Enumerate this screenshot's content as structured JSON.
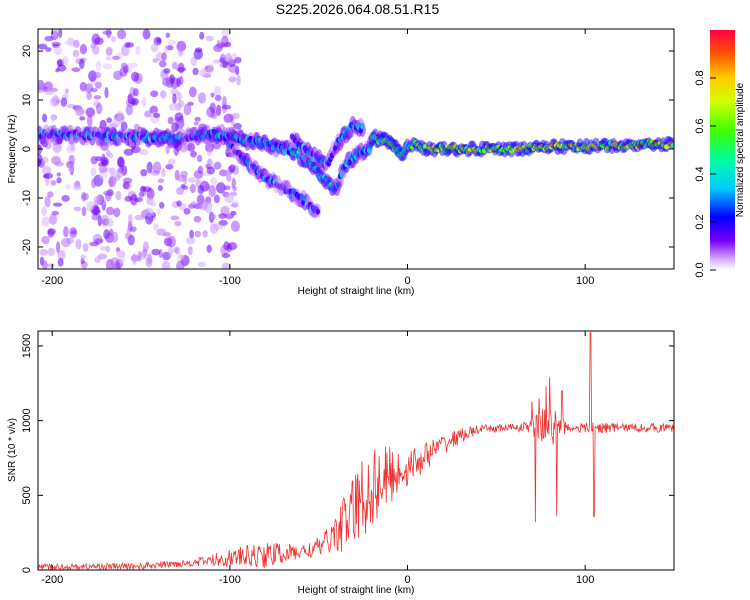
{
  "title": "S225.2026.064.08.51.R15",
  "chart_data": [
    {
      "type": "heatmap",
      "xlabel": "Height of straight line (km)",
      "ylabel": "Frequency (Hz)",
      "xlim": [
        -208,
        150
      ],
      "ylim": [
        -24.5,
        24.5
      ],
      "xticks": [
        -200,
        -100,
        0,
        100
      ],
      "yticks": [
        -20,
        -10,
        0,
        10,
        20
      ],
      "colorbar": {
        "label": "Normalized spectral amplitude",
        "range": [
          0,
          1
        ],
        "ticks": [
          0.0,
          0.2,
          0.4,
          0.6,
          0.8
        ]
      },
      "tracks": [
        {
          "name": "main-trace",
          "points": [
            [
              -208,
              3
            ],
            [
              -190,
              3
            ],
            [
              -170,
              2.5
            ],
            [
              -150,
              2.5
            ],
            [
              -130,
              2
            ],
            [
              -115,
              3
            ],
            [
              -105,
              3
            ],
            [
              -95,
              2
            ],
            [
              -80,
              1
            ],
            [
              -70,
              0
            ],
            [
              -62,
              -1
            ],
            [
              -52,
              -4
            ],
            [
              -45,
              -7
            ],
            [
              -40,
              -8
            ],
            [
              -35,
              -3
            ],
            [
              -28,
              -1
            ],
            [
              -22,
              0
            ],
            [
              -20,
              2
            ],
            [
              -14,
              2
            ],
            [
              -8,
              0.5
            ],
            [
              -4,
              -1
            ],
            [
              0,
              0.5
            ],
            [
              5,
              1
            ],
            [
              10,
              0
            ],
            [
              20,
              0
            ],
            [
              40,
              0
            ],
            [
              60,
              0
            ],
            [
              80,
              0.5
            ],
            [
              100,
              0.5
            ],
            [
              120,
              0.8
            ],
            [
              140,
              1
            ],
            [
              150,
              1
            ]
          ]
        },
        {
          "name": "lower-branch",
          "points": [
            [
              -100,
              1
            ],
            [
              -90,
              -3
            ],
            [
              -80,
              -6
            ],
            [
              -70,
              -8
            ],
            [
              -60,
              -10
            ],
            [
              -50,
              -13
            ]
          ]
        },
        {
          "name": "upper-branch",
          "points": [
            [
              -65,
              2
            ],
            [
              -55,
              -1
            ],
            [
              -45,
              -3
            ],
            [
              -40,
              1
            ],
            [
              -35,
              3
            ],
            [
              -30,
              5
            ],
            [
              -25,
              4
            ]
          ]
        }
      ]
    },
    {
      "type": "line",
      "xlabel": "Height of straight line (km)",
      "ylabel": "SNR (10 * v/v)",
      "xlim": [
        -208,
        150
      ],
      "ylim": [
        0,
        1600
      ],
      "xticks": [
        -200,
        -100,
        0,
        100
      ],
      "yticks": [
        0,
        500,
        1000,
        1500
      ],
      "line_color": "#ee3333",
      "envelope": [
        [
          -208,
          20
        ],
        [
          -150,
          25
        ],
        [
          -120,
          50
        ],
        [
          -100,
          80
        ],
        [
          -80,
          100
        ],
        [
          -60,
          120
        ],
        [
          -50,
          150
        ],
        [
          -40,
          250
        ],
        [
          -30,
          400
        ],
        [
          -20,
          560
        ],
        [
          -10,
          630
        ],
        [
          0,
          680
        ],
        [
          10,
          760
        ],
        [
          20,
          840
        ],
        [
          30,
          900
        ],
        [
          40,
          940
        ],
        [
          60,
          955
        ],
        [
          80,
          960
        ],
        [
          100,
          950
        ],
        [
          120,
          955
        ],
        [
          150,
          950
        ]
      ],
      "noise": [
        [
          -208,
          20
        ],
        [
          -120,
          25
        ],
        [
          -100,
          60
        ],
        [
          -80,
          90
        ],
        [
          -60,
          50
        ],
        [
          -45,
          80
        ],
        [
          -35,
          200
        ],
        [
          -25,
          300
        ],
        [
          -15,
          250
        ],
        [
          0,
          120
        ],
        [
          20,
          70
        ],
        [
          40,
          30
        ],
        [
          60,
          25
        ],
        [
          68,
          40
        ],
        [
          80,
          150
        ],
        [
          90,
          30
        ],
        [
          95,
          30
        ],
        [
          105,
          40
        ],
        [
          120,
          30
        ],
        [
          150,
          30
        ]
      ],
      "spikes": [
        [
          70,
          1130
        ],
        [
          72,
          320
        ],
        [
          74,
          1150
        ],
        [
          76,
          1080
        ],
        [
          78,
          1230
        ],
        [
          80,
          1290
        ],
        [
          82,
          840
        ],
        [
          84,
          360
        ],
        [
          86,
          1000
        ],
        [
          87,
          1200
        ],
        [
          103,
          1590
        ],
        [
          104,
          930
        ],
        [
          105,
          360
        ]
      ]
    }
  ]
}
